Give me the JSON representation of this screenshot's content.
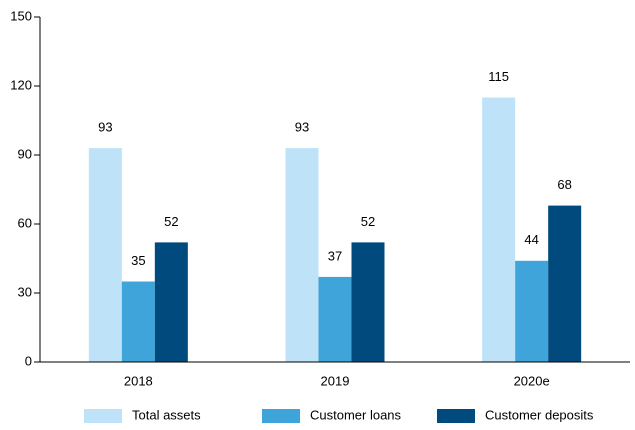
{
  "chart_data": {
    "type": "bar",
    "categories": [
      "2018",
      "2019",
      "2020e"
    ],
    "series": [
      {
        "name": "Total assets",
        "color": "#bee3f8",
        "values": [
          93,
          93,
          115
        ]
      },
      {
        "name": "Customer loans",
        "color": "#3fa4d9",
        "values": [
          35,
          37,
          44
        ]
      },
      {
        "name": "Customer deposits",
        "color": "#004a7d",
        "values": [
          52,
          52,
          68
        ]
      }
    ],
    "ylim": [
      0,
      150
    ],
    "yticks": [
      0,
      30,
      60,
      90,
      120,
      150
    ],
    "legend": "bottom"
  }
}
